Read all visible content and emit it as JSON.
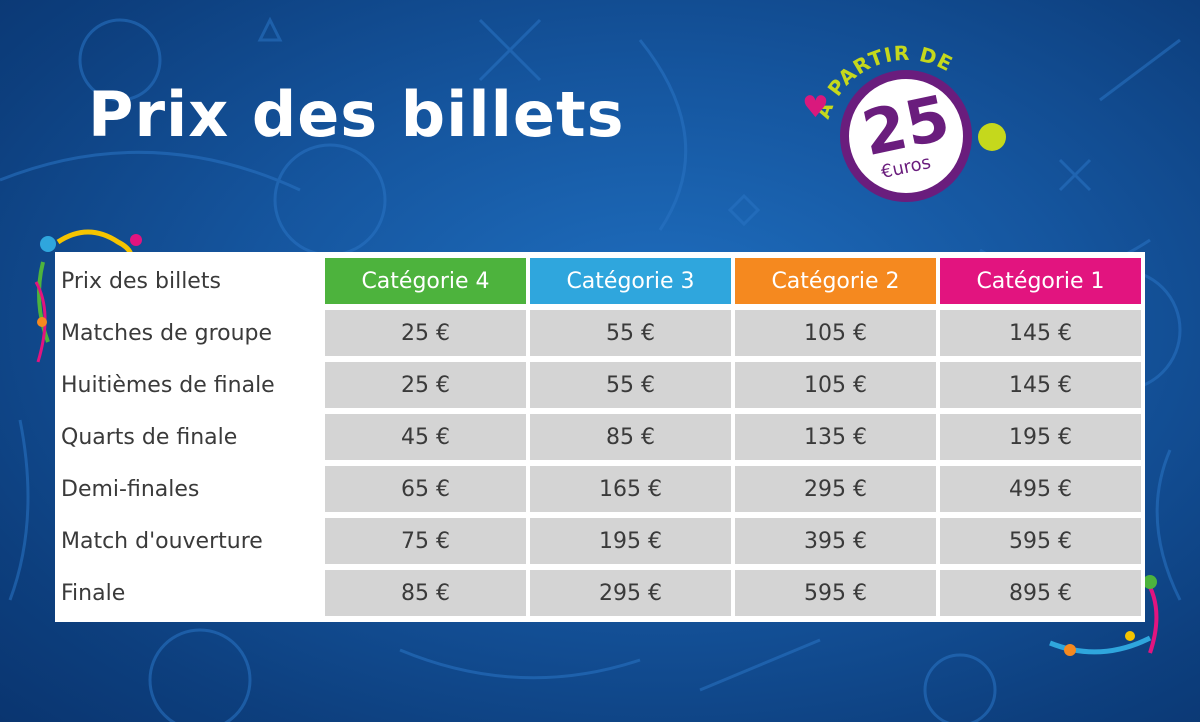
{
  "header": {
    "title": "Prix des billets"
  },
  "badge": {
    "arc_text": "À PARTIR DE",
    "amount": "25",
    "unit": "€uros"
  },
  "colors": {
    "background": "#15559e",
    "cat4": "#4db33d",
    "cat3": "#2fa6dd",
    "cat2": "#f5891f",
    "cat1": "#e2147f",
    "badge_purple": "#6a1d7d",
    "badge_green": "#c5d81c"
  },
  "table": {
    "corner_label": "Prix des billets",
    "columns": [
      "Catégorie 4",
      "Catégorie 3",
      "Catégorie 2",
      "Catégorie 1"
    ],
    "rows": [
      {
        "label": "Matches de groupe",
        "prices": [
          "25 €",
          "55 €",
          "105 €",
          "145 €"
        ]
      },
      {
        "label": "Huitièmes de finale",
        "prices": [
          "25 €",
          "55 €",
          "105 €",
          "145 €"
        ]
      },
      {
        "label": "Quarts de finale",
        "prices": [
          "45 €",
          "85 €",
          "135 €",
          "195 €"
        ]
      },
      {
        "label": "Demi-finales",
        "prices": [
          "65 €",
          "165 €",
          "295 €",
          "495 €"
        ]
      },
      {
        "label": "Match d'ouverture",
        "prices": [
          "75 €",
          "195 €",
          "395 €",
          "595 €"
        ]
      },
      {
        "label": "Finale",
        "prices": [
          "85 €",
          "295 €",
          "595 €",
          "895 €"
        ]
      }
    ]
  }
}
